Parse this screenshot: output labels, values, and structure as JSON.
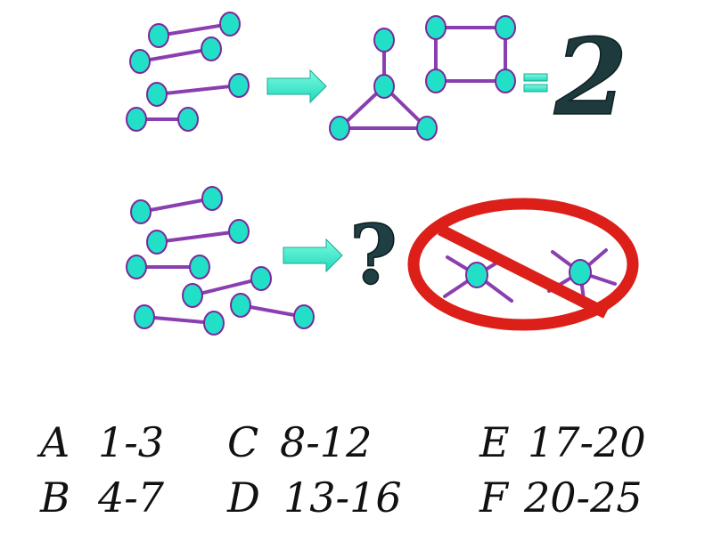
{
  "equals_result": "2",
  "question_mark": "?",
  "options": [
    {
      "letter": "A",
      "range": "1-3"
    },
    {
      "letter": "B",
      "range": "4-7"
    },
    {
      "letter": "C",
      "range": "8-12"
    },
    {
      "letter": "D",
      "range": "13-16"
    },
    {
      "letter": "E",
      "range": "17-20"
    },
    {
      "letter": "F",
      "range": "20-25"
    }
  ],
  "colors": {
    "node_fill": "#22e0c8",
    "node_stroke": "#7a2a9c",
    "edge_a": "#8a3fb0",
    "edge_b": "#3fe0cc",
    "arrow": "#33f0cc",
    "prohibit": "#dd1f1a"
  },
  "icons": [
    "arrow-right-icon",
    "equals-icon",
    "prohibition-icon"
  ]
}
